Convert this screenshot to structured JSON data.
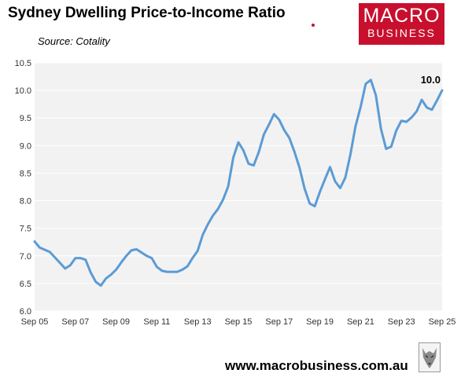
{
  "title": "Sydney Dwelling Price-to-Income Ratio",
  "subtitle": "Source: Cotality",
  "logo": {
    "line1": "MACRO",
    "line2": "BUSINESS"
  },
  "footer": {
    "url": "www.macrobusiness.com.au"
  },
  "colors": {
    "line": "#5b9bd5",
    "plot_background": "#f2f2f2",
    "logo_red": "#c8102e",
    "gridline": "#ffffff"
  },
  "chart_data": {
    "type": "line",
    "title": "Sydney Dwelling Price-to-Income Ratio",
    "xlabel": "",
    "ylabel": "",
    "ylim": [
      6.0,
      10.5
    ],
    "y_ticks": [
      "6.0",
      "6.5",
      "7.0",
      "7.5",
      "8.0",
      "8.5",
      "9.0",
      "9.5",
      "10.0",
      "10.5"
    ],
    "x_ticks": [
      "Sep 05",
      "Sep 07",
      "Sep 09",
      "Sep 11",
      "Sep 13",
      "Sep 15",
      "Sep 17",
      "Sep 19",
      "Sep 21",
      "Sep 23",
      "Sep 25"
    ],
    "grid": true,
    "legend": "none",
    "end_label": "10.0",
    "series": [
      {
        "x": [
          "Sep 05",
          "Dec 05",
          "Mar 06",
          "Jun 06",
          "Sep 06",
          "Dec 06",
          "Mar 07",
          "Jun 07",
          "Sep 07",
          "Dec 07",
          "Mar 08",
          "Jun 08",
          "Sep 08",
          "Dec 08",
          "Mar 09",
          "Jun 09",
          "Sep 09",
          "Dec 09",
          "Mar 10",
          "Jun 10",
          "Sep 10",
          "Dec 10",
          "Mar 11",
          "Jun 11",
          "Sep 11",
          "Dec 11",
          "Mar 12",
          "Jun 12",
          "Sep 12",
          "Dec 12",
          "Mar 13",
          "Jun 13",
          "Sep 13",
          "Dec 13",
          "Mar 14",
          "Jun 14",
          "Sep 14",
          "Dec 14",
          "Mar 15",
          "Jun 15",
          "Sep 15",
          "Dec 15",
          "Mar 16",
          "Jun 16",
          "Sep 16",
          "Dec 16",
          "Mar 17",
          "Jun 17",
          "Sep 17",
          "Dec 17",
          "Mar 18",
          "Jun 18",
          "Sep 18",
          "Dec 18",
          "Mar 19",
          "Jun 19",
          "Sep 19",
          "Dec 19",
          "Mar 20",
          "Jun 20",
          "Sep 20",
          "Dec 20",
          "Mar 21",
          "Jun 21",
          "Sep 21",
          "Dec 21",
          "Mar 22",
          "Jun 22",
          "Sep 22",
          "Dec 22",
          "Mar 23",
          "Jun 23",
          "Sep 23",
          "Dec 23",
          "Mar 24",
          "Jun 24",
          "Sep 24",
          "Dec 24",
          "Mar 25",
          "Jun 25",
          "Sep 25"
        ],
        "values": [
          7.26,
          7.15,
          7.11,
          7.07,
          6.97,
          6.87,
          6.77,
          6.83,
          6.96,
          6.96,
          6.93,
          6.7,
          6.53,
          6.46,
          6.59,
          6.66,
          6.75,
          6.88,
          7.0,
          7.1,
          7.12,
          7.06,
          7.0,
          6.96,
          6.8,
          6.73,
          6.71,
          6.71,
          6.71,
          6.75,
          6.81,
          6.96,
          7.09,
          7.38,
          7.57,
          7.73,
          7.85,
          8.02,
          8.26,
          8.78,
          9.06,
          8.91,
          8.67,
          8.64,
          8.88,
          9.2,
          9.38,
          9.57,
          9.47,
          9.28,
          9.14,
          8.89,
          8.6,
          8.22,
          7.95,
          7.9,
          8.16,
          8.39,
          8.61,
          8.35,
          8.23,
          8.42,
          8.84,
          9.35,
          9.7,
          10.12,
          10.19,
          9.91,
          9.3,
          8.94,
          8.98,
          9.27,
          9.45,
          9.43,
          9.51,
          9.62,
          9.83,
          9.69,
          9.65,
          9.82,
          10.0
        ]
      }
    ]
  }
}
